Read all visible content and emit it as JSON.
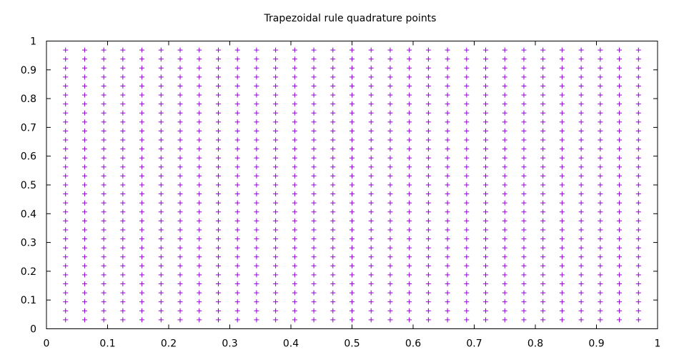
{
  "chart_data": {
    "type": "scatter",
    "title": "Trapezoidal rule quadrature points",
    "xlabel": "",
    "ylabel": "",
    "xlim": [
      0,
      1
    ],
    "ylim": [
      0,
      1
    ],
    "grid": false,
    "marker": "plus",
    "color": "#9400d3",
    "x_ticks": [
      "0",
      "0.1",
      "0.2",
      "0.3",
      "0.4",
      "0.5",
      "0.6",
      "0.7",
      "0.8",
      "0.9",
      "1"
    ],
    "y_ticks": [
      "0",
      "0.1",
      "0.2",
      "0.3",
      "0.4",
      "0.5",
      "0.6",
      "0.7",
      "0.8",
      "0.9",
      "1"
    ],
    "x_values": [
      0.03125,
      0.0625,
      0.09375,
      0.125,
      0.15625,
      0.1875,
      0.21875,
      0.25,
      0.28125,
      0.3125,
      0.34375,
      0.375,
      0.40625,
      0.4375,
      0.46875,
      0.5,
      0.53125,
      0.5625,
      0.59375,
      0.625,
      0.65625,
      0.6875,
      0.71875,
      0.75,
      0.78125,
      0.8125,
      0.84375,
      0.875,
      0.90625,
      0.9375,
      0.96875
    ],
    "y_values": [
      0.03125,
      0.0625,
      0.09375,
      0.125,
      0.15625,
      0.1875,
      0.21875,
      0.25,
      0.28125,
      0.3125,
      0.34375,
      0.375,
      0.40625,
      0.4375,
      0.46875,
      0.5,
      0.53125,
      0.5625,
      0.59375,
      0.625,
      0.65625,
      0.6875,
      0.71875,
      0.75,
      0.78125,
      0.8125,
      0.84375,
      0.875,
      0.90625,
      0.9375,
      0.96875
    ]
  }
}
